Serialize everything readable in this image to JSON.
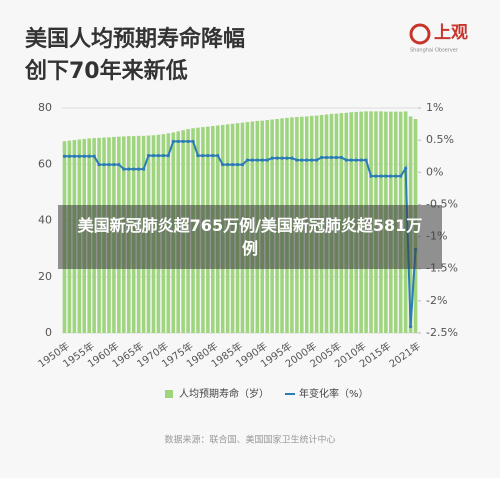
{
  "logo": {
    "name": "上观",
    "subtitle": "Shanghai Observer"
  },
  "overlay": "美国新冠肺炎超765万例/美国新冠肺炎超581万例",
  "chart_data": {
    "type": "bar_line",
    "title": [
      "美国人均预期寿命降幅",
      "创下70年来新低"
    ],
    "source": "数据来源：联合国、美国国家卫生统计中心",
    "categories": [
      "1950年",
      null,
      null,
      null,
      null,
      "1955年",
      null,
      null,
      null,
      null,
      "1960年",
      null,
      null,
      null,
      null,
      "1965年",
      null,
      null,
      null,
      null,
      "1970年",
      null,
      null,
      null,
      null,
      "1975年",
      null,
      null,
      null,
      null,
      "1980年",
      null,
      null,
      null,
      null,
      "1985年",
      null,
      null,
      null,
      null,
      "1990年",
      null,
      null,
      null,
      null,
      "1995年",
      null,
      null,
      null,
      null,
      "2000年",
      null,
      null,
      null,
      null,
      "2005年",
      null,
      null,
      null,
      null,
      "2010年",
      null,
      null,
      null,
      null,
      "2015年",
      null,
      null,
      null,
      null,
      null,
      "2021年"
    ],
    "series": [
      {
        "name": "人均预期寿命（岁）",
        "type": "bar",
        "color": "#9fd57f",
        "values": [
          68.2,
          68.4,
          68.6,
          68.8,
          69.0,
          69.2,
          69.3,
          69.4,
          69.5,
          69.6,
          69.7,
          69.8,
          69.9,
          70.0,
          70.0,
          70.1,
          70.1,
          70.2,
          70.3,
          70.5,
          70.7,
          71.0,
          71.3,
          71.7,
          72.1,
          72.5,
          72.8,
          73.0,
          73.2,
          73.4,
          73.6,
          73.8,
          74.0,
          74.2,
          74.4,
          74.6,
          74.8,
          75.0,
          75.2,
          75.4,
          75.5,
          75.7,
          75.9,
          76.1,
          76.3,
          76.5,
          76.7,
          76.8,
          76.9,
          77.0,
          77.2,
          77.3,
          77.5,
          77.7,
          77.9,
          78.0,
          78.2,
          78.3,
          78.5,
          78.6,
          78.7,
          78.8,
          78.8,
          78.8,
          78.8,
          78.7,
          78.7,
          78.7,
          78.7,
          78.8,
          77.0,
          76.1
        ]
      },
      {
        "name": "年变化率（%）",
        "type": "line",
        "axis": "y2",
        "color": "#2b7bb5",
        "values": [
          0.25,
          0.25,
          0.25,
          0.25,
          0.25,
          0.25,
          0.25,
          0.12,
          0.12,
          0.12,
          0.12,
          0.12,
          0.05,
          0.05,
          0.05,
          0.05,
          0.05,
          0.26,
          0.26,
          0.26,
          0.26,
          0.26,
          0.48,
          0.48,
          0.48,
          0.48,
          0.48,
          0.26,
          0.26,
          0.26,
          0.26,
          0.26,
          0.12,
          0.12,
          0.12,
          0.12,
          0.12,
          0.19,
          0.19,
          0.19,
          0.19,
          0.19,
          0.22,
          0.22,
          0.22,
          0.22,
          0.22,
          0.19,
          0.19,
          0.19,
          0.19,
          0.19,
          0.23,
          0.23,
          0.23,
          0.23,
          0.23,
          0.19,
          0.19,
          0.19,
          0.19,
          0.19,
          -0.06,
          -0.06,
          -0.06,
          -0.06,
          -0.06,
          -0.06,
          -0.06,
          0.06,
          -2.4,
          -1.2
        ]
      }
    ],
    "ylim": [
      0,
      80
    ],
    "yticks": [
      0,
      20,
      40,
      60,
      80
    ],
    "y2lim": [
      -2.5,
      1
    ],
    "y2ticks": [
      {
        "value": 1,
        "label": "1%"
      },
      {
        "value": 0.5,
        "label": "0.5%"
      },
      {
        "value": 0,
        "label": "0%"
      },
      {
        "value": -0.5,
        "label": "-0.5%"
      },
      {
        "value": -1,
        "label": "-1%"
      },
      {
        "value": -1.5,
        "label": "-1.5%"
      },
      {
        "value": -2,
        "label": "-2%"
      },
      {
        "value": -2.5,
        "label": "-2.5%"
      }
    ],
    "grid": true
  }
}
